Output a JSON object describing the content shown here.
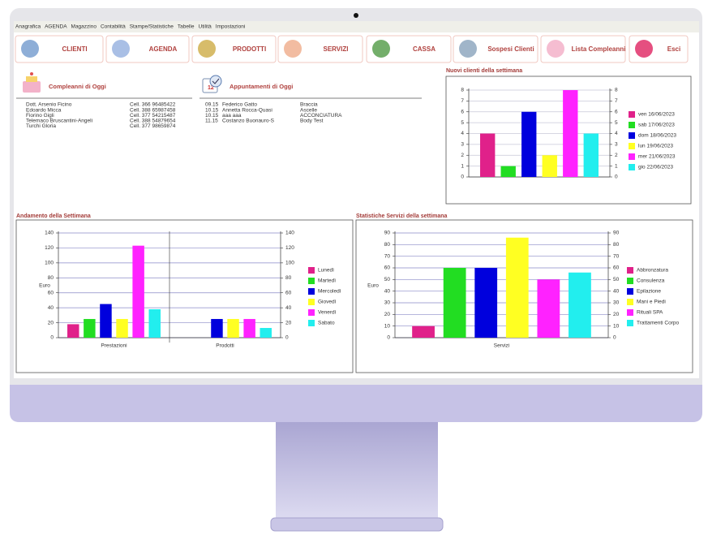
{
  "menu": [
    "Anagrafica",
    "AGENDA",
    "Magazzino",
    "Contabilità",
    "Stampe/Statistiche",
    "Tabelle",
    "Utilità",
    "Impostazioni"
  ],
  "toolbar": [
    "CLIENTI",
    "AGENDA",
    "PRODOTTI",
    "SERVIZI",
    "CASSA",
    "Sospesi Clienti",
    "Lista Compleanni",
    "Esci"
  ],
  "birthdays": {
    "title": "Compleanni di Oggi",
    "rows": [
      [
        "Dott. Arsenio Ficino",
        "Cell. 366 96485422"
      ],
      [
        "Edoardo Micca",
        "Cell. 388 65987458"
      ],
      [
        "Fiorino Gigli",
        "Cell. 377 54215487"
      ],
      [
        "Telemaco Bruscantini-Angeli",
        "Cell. 388 54879654"
      ],
      [
        "Turchi Gloria",
        "Cell. 377 98659874"
      ]
    ]
  },
  "appointments": {
    "title": "Appuntamenti di Oggi",
    "rows": [
      [
        "09.15",
        "Federico Gatto",
        "Braccia"
      ],
      [
        "10.15",
        "Annetta Rocca-Quasi",
        "Ascelle"
      ],
      [
        "10.15",
        "aaa aaa",
        "ACCONCIATURA"
      ],
      [
        "11.15",
        "Costanzo Buonauro-S",
        "Body Test"
      ]
    ]
  },
  "chart_data": [
    {
      "type": "bar",
      "title": "Nuovi clienti della settimana",
      "categories": [
        null
      ],
      "series": [
        {
          "name": "ven 16/06/2023",
          "color": "#e0218a",
          "values": [
            4
          ]
        },
        {
          "name": "sab 17/06/2023",
          "color": "#22dd22",
          "values": [
            1
          ]
        },
        {
          "name": "dom 18/06/2023",
          "color": "#0000dd",
          "values": [
            6
          ]
        },
        {
          "name": "lun 19/06/2023",
          "color": "#ffff22",
          "values": [
            2
          ]
        },
        {
          "name": "mer 21/06/2023",
          "color": "#ff22ff",
          "values": [
            8
          ]
        },
        {
          "name": "gio 22/06/2023",
          "color": "#22eeee",
          "values": [
            4
          ]
        }
      ],
      "ylim": [
        0,
        8
      ],
      "yticks": [
        0,
        1,
        2,
        3,
        4,
        5,
        6,
        7,
        8
      ],
      "y2lim": [
        0,
        8
      ],
      "y2ticks": [
        0,
        1,
        2,
        3,
        4,
        5,
        6,
        7,
        8
      ],
      "grid": true
    },
    {
      "type": "bar",
      "title": "Andamento della Settimana",
      "ylabel": "Euro",
      "categories": [
        "Prestazioni",
        "Prodotti"
      ],
      "series": [
        {
          "name": "Lunedì",
          "color": "#e0218a",
          "values": [
            18,
            0
          ]
        },
        {
          "name": "Martedì",
          "color": "#22dd22",
          "values": [
            25,
            0
          ]
        },
        {
          "name": "Mercoledì",
          "color": "#0000dd",
          "values": [
            45,
            25
          ]
        },
        {
          "name": "Giovedì",
          "color": "#ffff22",
          "values": [
            25,
            25
          ]
        },
        {
          "name": "Venerdì",
          "color": "#ff22ff",
          "values": [
            123,
            25
          ]
        },
        {
          "name": "Sabato",
          "color": "#22eeee",
          "values": [
            38,
            13
          ]
        }
      ],
      "ylim": [
        0,
        140
      ],
      "yticks": [
        0,
        20,
        40,
        60,
        80,
        100,
        120,
        140
      ],
      "y2lim": [
        0,
        140
      ],
      "y2ticks": [
        0,
        20,
        40,
        60,
        80,
        100,
        120,
        140
      ],
      "grid": true
    },
    {
      "type": "bar",
      "title": "Statistiche Servizi della settimana",
      "ylabel": "Euro",
      "categories": [
        "Servizi"
      ],
      "series": [
        {
          "name": "Abbronzatura",
          "color": "#e0218a",
          "values": [
            10
          ]
        },
        {
          "name": "Consulenza",
          "color": "#22dd22",
          "values": [
            60
          ]
        },
        {
          "name": "Epilazione",
          "color": "#0000dd",
          "values": [
            60
          ]
        },
        {
          "name": "Mani e Piedi",
          "color": "#ffff22",
          "values": [
            86
          ]
        },
        {
          "name": "Rituali SPA",
          "color": "#ff22ff",
          "values": [
            50
          ]
        },
        {
          "name": "Trattamenti Corpo",
          "color": "#22eeee",
          "values": [
            56
          ]
        }
      ],
      "ylim": [
        0,
        90
      ],
      "yticks": [
        0,
        10,
        20,
        30,
        40,
        50,
        60,
        70,
        80,
        90
      ],
      "y2lim": [
        0,
        90
      ],
      "y2ticks": [
        0,
        10,
        20,
        30,
        40,
        50,
        60,
        70,
        80,
        90
      ],
      "grid": true
    }
  ]
}
